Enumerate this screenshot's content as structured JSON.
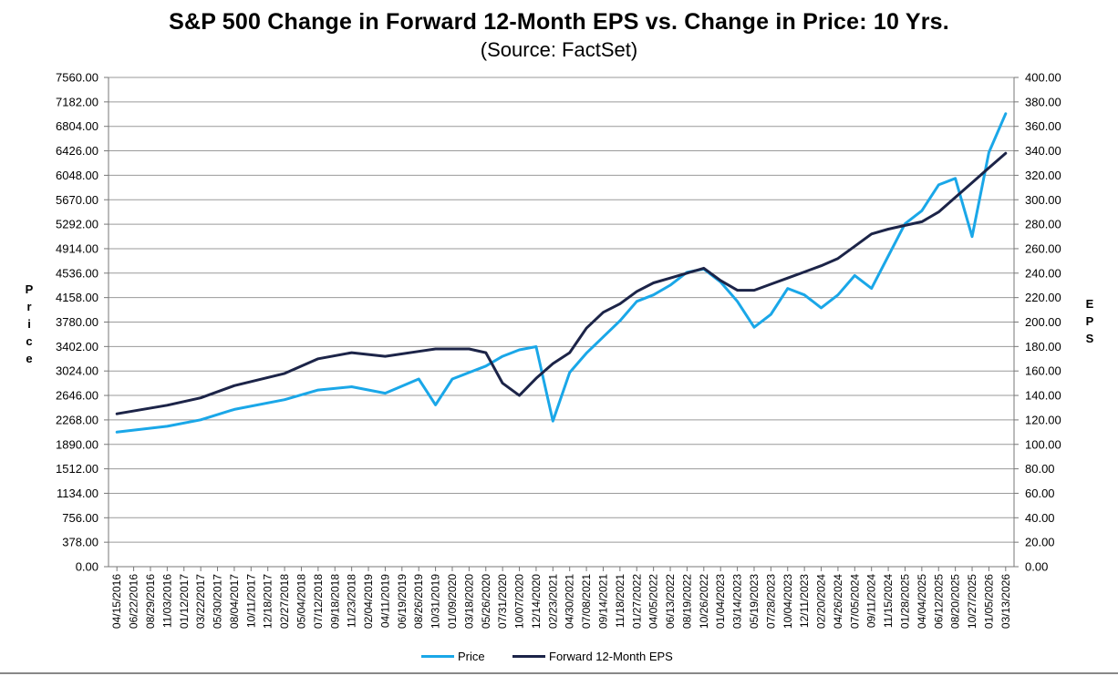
{
  "chart_data": {
    "type": "line",
    "title": "S&P 500 Change in Forward 12-Month EPS vs. Change in Price: 10 Yrs.",
    "subtitle": "(Source: FactSet)",
    "ylabel_left": "Price",
    "ylabel_right": "EPS",
    "ylim_left": [
      0,
      7560
    ],
    "ylim_right": [
      0,
      400
    ],
    "y_ticks_left": [
      "7560.00",
      "7182.00",
      "6804.00",
      "6426.00",
      "6048.00",
      "5670.00",
      "5292.00",
      "4914.00",
      "4536.00",
      "4158.00",
      "3780.00",
      "3402.00",
      "3024.00",
      "2646.00",
      "2268.00",
      "1890.00",
      "1512.00",
      "1134.00",
      "756.00",
      "378.00",
      "0.00"
    ],
    "y_ticks_right": [
      "400.00",
      "380.00",
      "360.00",
      "340.00",
      "320.00",
      "300.00",
      "280.00",
      "260.00",
      "240.00",
      "220.00",
      "200.00",
      "180.00",
      "160.00",
      "140.00",
      "120.00",
      "100.00",
      "80.00",
      "60.00",
      "40.00",
      "20.00",
      "0.00"
    ],
    "x_ticks": [
      "04/15/2016",
      "06/22/2016",
      "08/29/2016",
      "11/03/2016",
      "01/12/2017",
      "03/22/2017",
      "05/30/2017",
      "08/04/2017",
      "10/11/2017",
      "12/18/2017",
      "02/27/2018",
      "05/04/2018",
      "07/12/2018",
      "09/18/2018",
      "11/23/2018",
      "02/04/2019",
      "04/11/2019",
      "06/19/2019",
      "08/26/2019",
      "10/31/2019",
      "01/09/2020",
      "03/18/2020",
      "05/26/2020",
      "07/31/2020",
      "10/07/2020",
      "12/14/2020",
      "02/23/2021",
      "04/30/2021",
      "07/08/2021",
      "09/14/2021",
      "11/18/2021",
      "01/27/2022",
      "04/05/2022",
      "06/13/2022",
      "08/19/2022",
      "10/26/2022",
      "01/04/2023",
      "03/14/2023",
      "05/19/2023",
      "07/28/2023",
      "10/04/2023",
      "12/11/2023",
      "02/20/2024",
      "04/26/2024",
      "07/05/2024",
      "09/11/2024",
      "11/15/2024",
      "01/28/2025",
      "04/04/2025",
      "06/12/2025",
      "08/20/2025",
      "10/27/2025",
      "01/05/2026",
      "03/13/2026"
    ],
    "series": [
      {
        "name": "Price",
        "axis": "left",
        "color": "#1AA7E8",
        "x": [
          0,
          3,
          5,
          7,
          10,
          12,
          14,
          16,
          18,
          19,
          20,
          21,
          22,
          23,
          24,
          25,
          26,
          27,
          28,
          29,
          30,
          31,
          32,
          33,
          34,
          35,
          36,
          37,
          38,
          39,
          40,
          41,
          42,
          43,
          44,
          45,
          46,
          47,
          48,
          49,
          50,
          51,
          52,
          53
        ],
        "y": [
          2080,
          2170,
          2270,
          2430,
          2580,
          2730,
          2780,
          2680,
          2900,
          2500,
          2900,
          3000,
          3100,
          3250,
          3350,
          3400,
          2250,
          3000,
          3300,
          3550,
          3800,
          4100,
          4200,
          4350,
          4550,
          4600,
          4400,
          4100,
          3700,
          3900,
          4300,
          4200,
          4000,
          4200,
          4500,
          4300,
          4800,
          5300,
          5500,
          5900,
          6000,
          5100,
          6400,
          7000
        ]
      },
      {
        "name": "Forward 12-Month EPS",
        "axis": "right",
        "color": "#1C2448",
        "x": [
          0,
          3,
          5,
          7,
          10,
          12,
          14,
          16,
          18,
          19,
          20,
          21,
          22,
          23,
          24,
          25,
          26,
          27,
          28,
          29,
          30,
          31,
          32,
          33,
          34,
          35,
          36,
          37,
          38,
          39,
          40,
          41,
          42,
          43,
          44,
          45,
          46,
          47,
          48,
          49,
          50,
          51,
          52,
          53
        ],
        "y": [
          125,
          132,
          138,
          148,
          158,
          170,
          175,
          172,
          176,
          178,
          178,
          178,
          175,
          150,
          140,
          154,
          166,
          175,
          195,
          208,
          215,
          225,
          232,
          236,
          240,
          244,
          234,
          226,
          226,
          231,
          236,
          241,
          246,
          252,
          262,
          272,
          276,
          279,
          282,
          290,
          302,
          314,
          326,
          338
        ]
      }
    ],
    "legend": [
      "Price",
      "Forward 12-Month EPS"
    ],
    "legend_position": "bottom-center",
    "grid": true
  }
}
